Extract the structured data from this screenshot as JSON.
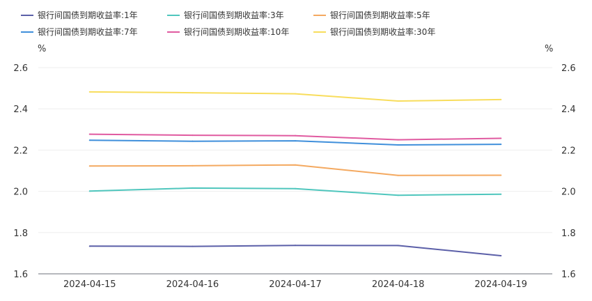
{
  "chart_data": {
    "type": "line",
    "categories": [
      "2024-04-15",
      "2024-04-16",
      "2024-04-17",
      "2024-04-18",
      "2024-04-19"
    ],
    "series": [
      {
        "name": "银行间国债到期收益率:1年",
        "color": "#5b5fa8",
        "values": [
          1.734,
          1.733,
          1.738,
          1.737,
          1.688
        ]
      },
      {
        "name": "银行间国债到期收益率:3年",
        "color": "#4fc6bd",
        "values": [
          2.001,
          2.016,
          2.013,
          1.981,
          1.986
        ]
      },
      {
        "name": "银行间国债到期收益率:5年",
        "color": "#f4a960",
        "values": [
          2.123,
          2.124,
          2.128,
          2.077,
          2.078
        ]
      },
      {
        "name": "银行间国债到期收益率:7年",
        "color": "#3f8fdb",
        "values": [
          2.248,
          2.243,
          2.245,
          2.225,
          2.228
        ]
      },
      {
        "name": "银行间国债到期收益率:10年",
        "color": "#e05aa0",
        "values": [
          2.277,
          2.272,
          2.27,
          2.25,
          2.257
        ]
      },
      {
        "name": "银行间国债到期收益率:30年",
        "color": "#f8dd5c",
        "values": [
          2.482,
          2.478,
          2.473,
          2.438,
          2.445
        ]
      }
    ],
    "y_unit_left": "%",
    "y_unit_right": "%",
    "ylim": [
      1.6,
      2.6
    ],
    "yticks": [
      "1.6",
      "1.8",
      "2.0",
      "2.2",
      "2.4",
      "2.6"
    ],
    "grid": true,
    "legend_position": "top-left"
  }
}
